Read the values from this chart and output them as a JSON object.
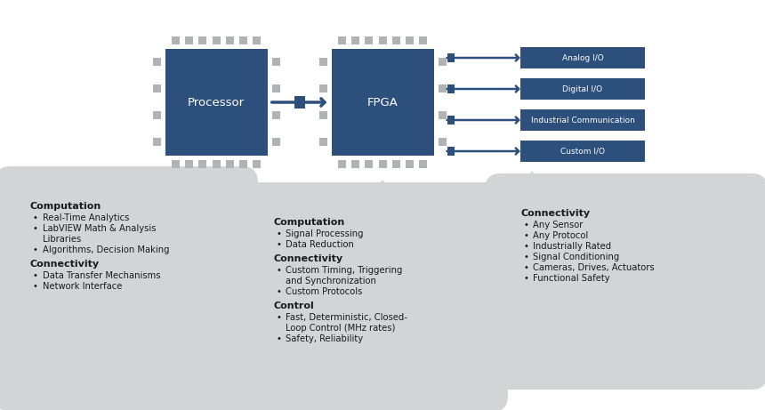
{
  "bg_color": "#ffffff",
  "chip_color": "#2d4f7c",
  "chip_text_color": "#ffffff",
  "io_box_color": "#2d4f7c",
  "io_text_color": "#ffffff",
  "arrow_color": "#2d4f7c",
  "pin_color": "#b0b2b5",
  "bubble_color": "#d3d4d6",
  "bubble_text_color": "#1a1a1a",
  "processor_label": "Processor",
  "fpga_label": "FPGA",
  "io_labels": [
    "Analog I/O",
    "Digital I/O",
    "Industrial Communication",
    "Custom I/O"
  ],
  "box1_title1": "Computation",
  "box1_items1": [
    "Real-Time Analytics",
    "LabVIEW Math & Analysis\nLibraries",
    "Algorithms, Decision Making"
  ],
  "box1_title2": "Connectivity",
  "box1_items2": [
    "Data Transfer Mechanisms",
    "Network Interface"
  ],
  "box2_title1": "Computation",
  "box2_items1": [
    "Signal Processing",
    "Data Reduction"
  ],
  "box2_title2": "Connectivity",
  "box2_items2": [
    "Custom Timing, Triggering\nand Synchronization",
    "Custom Protocols"
  ],
  "box2_title3": "Control",
  "box2_items3": [
    "Fast, Deterministic, Closed-\nLoop Control (MHz rates)",
    "Safety, Reliability"
  ],
  "box3_title1": "Connectivity",
  "box3_items1": [
    "Any Sensor",
    "Any Protocol",
    "Industrially Rated",
    "Signal Conditioning",
    "Cameras, Drives, Actuators",
    "Functional Safety"
  ]
}
